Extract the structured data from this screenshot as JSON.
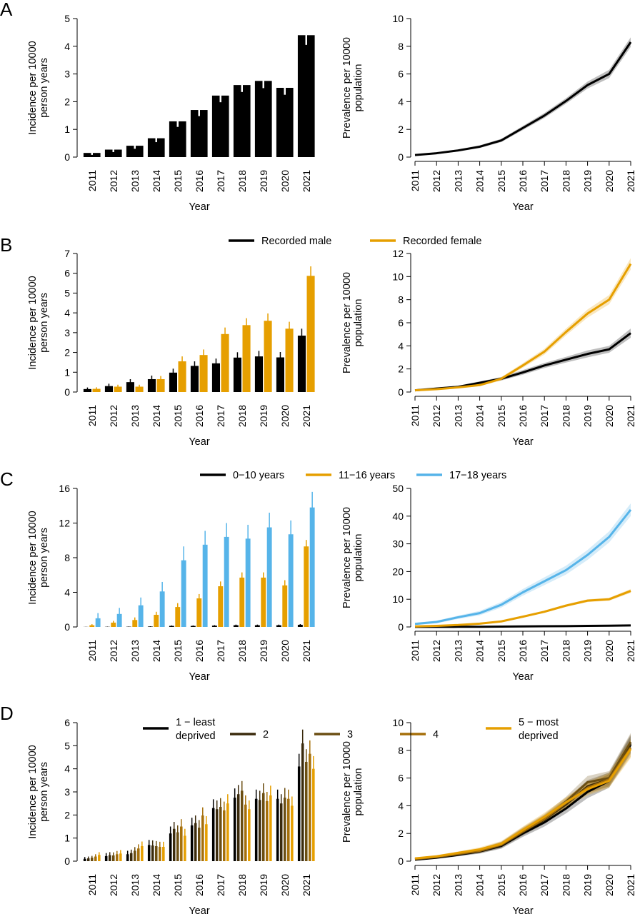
{
  "years": [
    "2011",
    "2012",
    "2013",
    "2014",
    "2015",
    "2016",
    "2017",
    "2018",
    "2019",
    "2020",
    "2021"
  ],
  "axis_text": {
    "incidence_ylabel": [
      "Incidence per 10000",
      "person years"
    ],
    "prevalence_ylabel": [
      "Prevalence per 10000",
      "population"
    ],
    "xlabel": "Year"
  },
  "colors": {
    "black": "#000000",
    "orange": "#E69F00",
    "blue": "#56B4E9",
    "dep1": "#000000",
    "dep2": "#3a2a0c",
    "dep3": "#6b4e12",
    "dep4": "#a56f0a",
    "dep5": "#E69F00"
  },
  "chart_data": [
    {
      "panel": "A",
      "side": "incidence",
      "type": "bar",
      "categories": [
        "2011",
        "2012",
        "2013",
        "2014",
        "2015",
        "2016",
        "2017",
        "2018",
        "2019",
        "2020",
        "2021"
      ],
      "ylim": [
        0,
        5
      ],
      "yticks": [
        0,
        1,
        2,
        3,
        4,
        5
      ],
      "series": [
        {
          "color": "black",
          "values": [
            0.15,
            0.27,
            0.41,
            0.68,
            1.29,
            1.7,
            2.22,
            2.6,
            2.75,
            2.5,
            4.4
          ],
          "err": [
            0.07,
            0.09,
            0.11,
            0.14,
            0.2,
            0.22,
            0.24,
            0.25,
            0.26,
            0.25,
            0.35
          ]
        }
      ]
    },
    {
      "panel": "A",
      "side": "prevalence",
      "type": "line",
      "x": [
        "2011",
        "2012",
        "2013",
        "2014",
        "2015",
        "2016",
        "2017",
        "2018",
        "2019",
        "2020",
        "2021"
      ],
      "ylim": [
        0,
        10
      ],
      "yticks": [
        0,
        2,
        4,
        6,
        8,
        10
      ],
      "series": [
        {
          "color": "black",
          "values": [
            0.15,
            0.28,
            0.48,
            0.75,
            1.2,
            2.1,
            3.0,
            4.05,
            5.2,
            6.0,
            8.3
          ],
          "band": [
            0.05,
            0.06,
            0.08,
            0.1,
            0.12,
            0.15,
            0.18,
            0.2,
            0.25,
            0.3,
            0.35
          ]
        }
      ]
    },
    {
      "panel": "B",
      "side": "incidence",
      "type": "bar",
      "categories": [
        "2011",
        "2012",
        "2013",
        "2014",
        "2015",
        "2016",
        "2017",
        "2018",
        "2019",
        "2020",
        "2021"
      ],
      "ylim": [
        0,
        7
      ],
      "yticks": [
        0,
        1,
        2,
        3,
        4,
        5,
        6,
        7
      ],
      "legend": [
        "Recorded male",
        "Recorded female"
      ],
      "series": [
        {
          "name": "Recorded male",
          "color": "black",
          "values": [
            0.15,
            0.3,
            0.5,
            0.65,
            0.98,
            1.32,
            1.45,
            1.74,
            1.8,
            1.75,
            2.85
          ],
          "err": [
            0.08,
            0.12,
            0.15,
            0.18,
            0.2,
            0.23,
            0.24,
            0.27,
            0.28,
            0.27,
            0.35
          ]
        },
        {
          "name": "Recorded female",
          "color": "orange",
          "values": [
            0.16,
            0.27,
            0.27,
            0.65,
            1.55,
            1.87,
            2.93,
            3.38,
            3.6,
            3.2,
            5.87
          ],
          "err": [
            0.08,
            0.1,
            0.1,
            0.16,
            0.25,
            0.28,
            0.33,
            0.35,
            0.37,
            0.35,
            0.48
          ]
        }
      ]
    },
    {
      "panel": "B",
      "side": "prevalence",
      "type": "line",
      "x": [
        "2011",
        "2012",
        "2013",
        "2014",
        "2015",
        "2016",
        "2017",
        "2018",
        "2019",
        "2020",
        "2021"
      ],
      "ylim": [
        0,
        12
      ],
      "yticks": [
        0,
        2,
        4,
        6,
        8,
        10,
        12
      ],
      "series": [
        {
          "name": "Recorded male",
          "color": "black",
          "values": [
            0.15,
            0.3,
            0.45,
            0.8,
            1.15,
            1.7,
            2.3,
            2.8,
            3.3,
            3.7,
            5.1
          ],
          "band": [
            0.05,
            0.08,
            0.1,
            0.12,
            0.15,
            0.2,
            0.22,
            0.25,
            0.3,
            0.3,
            0.4
          ]
        },
        {
          "name": "Recorded female",
          "color": "orange",
          "values": [
            0.15,
            0.25,
            0.4,
            0.6,
            1.15,
            2.3,
            3.5,
            5.2,
            6.8,
            8.0,
            11.1
          ],
          "band": [
            0.05,
            0.06,
            0.08,
            0.1,
            0.15,
            0.2,
            0.25,
            0.3,
            0.35,
            0.4,
            0.5
          ]
        }
      ]
    },
    {
      "panel": "C",
      "side": "incidence",
      "type": "bar",
      "categories": [
        "2011",
        "2012",
        "2013",
        "2014",
        "2015",
        "2016",
        "2017",
        "2018",
        "2019",
        "2020",
        "2021"
      ],
      "ylim": [
        0,
        16
      ],
      "yticks": [
        0,
        4,
        8,
        12,
        16
      ],
      "legend": [
        "0−10 years",
        "11−16 years",
        "17−18 years"
      ],
      "series": [
        {
          "name": "0−10 years",
          "color": "black",
          "values": [
            0.01,
            0.02,
            0.03,
            0.05,
            0.12,
            0.12,
            0.15,
            0.2,
            0.2,
            0.2,
            0.25
          ],
          "err": [
            0.01,
            0.02,
            0.02,
            0.03,
            0.05,
            0.05,
            0.06,
            0.07,
            0.07,
            0.07,
            0.08
          ]
        },
        {
          "name": "11−16 years",
          "color": "orange",
          "values": [
            0.2,
            0.5,
            0.8,
            1.4,
            2.3,
            3.3,
            4.7,
            5.7,
            5.7,
            4.8,
            9.3
          ],
          "err": [
            0.12,
            0.2,
            0.3,
            0.35,
            0.45,
            0.5,
            0.55,
            0.6,
            0.6,
            0.6,
            0.75
          ]
        },
        {
          "name": "17−18 years",
          "color": "blue",
          "values": [
            1.0,
            1.5,
            2.5,
            4.1,
            7.7,
            9.5,
            10.4,
            10.2,
            11.5,
            10.7,
            13.8
          ],
          "err": [
            0.6,
            0.7,
            0.9,
            1.1,
            1.6,
            1.6,
            1.6,
            1.6,
            1.7,
            1.6,
            1.8
          ]
        }
      ]
    },
    {
      "panel": "C",
      "side": "prevalence",
      "type": "line",
      "x": [
        "2011",
        "2012",
        "2013",
        "2014",
        "2015",
        "2016",
        "2017",
        "2018",
        "2019",
        "2020",
        "2021"
      ],
      "ylim": [
        0,
        50
      ],
      "yticks": [
        0,
        10,
        20,
        30,
        40,
        50
      ],
      "series": [
        {
          "name": "0−10 years",
          "color": "black",
          "values": [
            0.02,
            0.03,
            0.05,
            0.08,
            0.12,
            0.18,
            0.25,
            0.3,
            0.4,
            0.45,
            0.55
          ],
          "band": [
            0.02,
            0.03,
            0.03,
            0.04,
            0.05,
            0.06,
            0.07,
            0.08,
            0.09,
            0.1,
            0.12
          ]
        },
        {
          "name": "11−16 years",
          "color": "orange",
          "values": [
            0.2,
            0.4,
            0.7,
            1.2,
            2.0,
            3.7,
            5.5,
            7.7,
            9.5,
            10.0,
            13.0
          ],
          "band": [
            0.1,
            0.15,
            0.2,
            0.25,
            0.3,
            0.35,
            0.4,
            0.45,
            0.5,
            0.55,
            0.7
          ]
        },
        {
          "name": "17−18 years",
          "color": "blue",
          "values": [
            1.1,
            1.8,
            3.5,
            5.0,
            8.0,
            12.5,
            16.5,
            20.5,
            26.0,
            32.5,
            42.3
          ],
          "band": [
            0.4,
            0.5,
            0.6,
            0.8,
            1.0,
            1.2,
            1.4,
            1.6,
            1.8,
            2.0,
            2.3
          ]
        }
      ]
    },
    {
      "panel": "D",
      "side": "incidence",
      "type": "bar",
      "categories": [
        "2011",
        "2012",
        "2013",
        "2014",
        "2015",
        "2016",
        "2017",
        "2018",
        "2019",
        "2020",
        "2021"
      ],
      "ylim": [
        0,
        6
      ],
      "yticks": [
        0,
        1,
        2,
        3,
        4,
        5,
        6
      ],
      "legend": [
        [
          "1 − least",
          "deprived"
        ],
        [
          "2"
        ],
        [
          "3"
        ],
        [
          "4"
        ],
        [
          "5 − most",
          "deprived"
        ]
      ],
      "series": [
        {
          "name": "1 − least deprived",
          "color": "dep1",
          "values": [
            0.1,
            0.22,
            0.3,
            0.7,
            1.2,
            1.55,
            2.3,
            2.75,
            2.7,
            2.7,
            4.1
          ],
          "err": [
            0.08,
            0.13,
            0.15,
            0.22,
            0.3,
            0.33,
            0.38,
            0.4,
            0.4,
            0.4,
            0.55
          ]
        },
        {
          "name": "2",
          "color": "dep2",
          "values": [
            0.12,
            0.26,
            0.35,
            0.68,
            1.4,
            1.65,
            2.25,
            2.9,
            2.65,
            2.5,
            5.1
          ],
          "err": [
            0.08,
            0.13,
            0.15,
            0.22,
            0.3,
            0.33,
            0.38,
            0.4,
            0.4,
            0.4,
            0.6
          ]
        },
        {
          "name": "3",
          "color": "dep3",
          "values": [
            0.15,
            0.25,
            0.45,
            0.65,
            1.25,
            1.45,
            2.35,
            3.05,
            2.95,
            2.75,
            4.3
          ],
          "err": [
            0.08,
            0.13,
            0.16,
            0.22,
            0.3,
            0.33,
            0.38,
            0.42,
            0.42,
            0.42,
            0.55
          ]
        },
        {
          "name": "4",
          "color": "dep4",
          "values": [
            0.2,
            0.3,
            0.55,
            0.62,
            1.5,
            1.98,
            2.2,
            2.45,
            2.6,
            2.7,
            4.65
          ],
          "err": [
            0.1,
            0.14,
            0.18,
            0.22,
            0.32,
            0.35,
            0.38,
            0.4,
            0.4,
            0.4,
            0.58
          ]
        },
        {
          "name": "5 − most deprived",
          "color": "dep5",
          "values": [
            0.27,
            0.33,
            0.65,
            0.62,
            1.1,
            1.6,
            2.5,
            2.25,
            2.85,
            2.4,
            4.0
          ],
          "err": [
            0.12,
            0.15,
            0.2,
            0.22,
            0.3,
            0.35,
            0.4,
            0.38,
            0.42,
            0.4,
            0.55
          ]
        }
      ]
    },
    {
      "panel": "D",
      "side": "prevalence",
      "type": "line",
      "x": [
        "2011",
        "2012",
        "2013",
        "2014",
        "2015",
        "2016",
        "2017",
        "2018",
        "2019",
        "2020",
        "2021"
      ],
      "ylim": [
        0,
        10
      ],
      "yticks": [
        0,
        2,
        4,
        6,
        8,
        10
      ],
      "series": [
        {
          "name": "1 − least deprived",
          "color": "dep1",
          "values": [
            0.1,
            0.25,
            0.45,
            0.7,
            1.1,
            2.0,
            2.8,
            3.8,
            5.0,
            5.8,
            8.4
          ],
          "band": [
            0.06,
            0.08,
            0.1,
            0.15,
            0.2,
            0.25,
            0.3,
            0.35,
            0.45,
            0.5,
            0.65
          ]
        },
        {
          "name": "2",
          "color": "dep2",
          "values": [
            0.15,
            0.3,
            0.5,
            0.72,
            1.15,
            2.1,
            3.0,
            4.1,
            5.4,
            5.9,
            8.5
          ],
          "band": [
            0.06,
            0.08,
            0.1,
            0.15,
            0.2,
            0.25,
            0.3,
            0.35,
            0.45,
            0.5,
            0.65
          ]
        },
        {
          "name": "3",
          "color": "dep3",
          "values": [
            0.15,
            0.3,
            0.5,
            0.78,
            1.2,
            2.2,
            3.1,
            4.3,
            5.7,
            6.0,
            8.6
          ],
          "band": [
            0.06,
            0.08,
            0.1,
            0.15,
            0.2,
            0.25,
            0.3,
            0.35,
            0.45,
            0.5,
            0.65
          ]
        },
        {
          "name": "4",
          "color": "dep4",
          "values": [
            0.18,
            0.32,
            0.55,
            0.75,
            1.2,
            2.15,
            3.05,
            4.2,
            5.3,
            5.9,
            8.2
          ],
          "band": [
            0.06,
            0.08,
            0.1,
            0.15,
            0.2,
            0.25,
            0.3,
            0.35,
            0.45,
            0.5,
            0.65
          ]
        },
        {
          "name": "5 − most deprived",
          "color": "dep5",
          "values": [
            0.2,
            0.35,
            0.6,
            0.85,
            1.25,
            2.25,
            3.2,
            4.25,
            5.2,
            5.8,
            8.1
          ],
          "band": [
            0.06,
            0.08,
            0.1,
            0.15,
            0.2,
            0.25,
            0.3,
            0.35,
            0.45,
            0.5,
            0.65
          ]
        }
      ]
    }
  ]
}
